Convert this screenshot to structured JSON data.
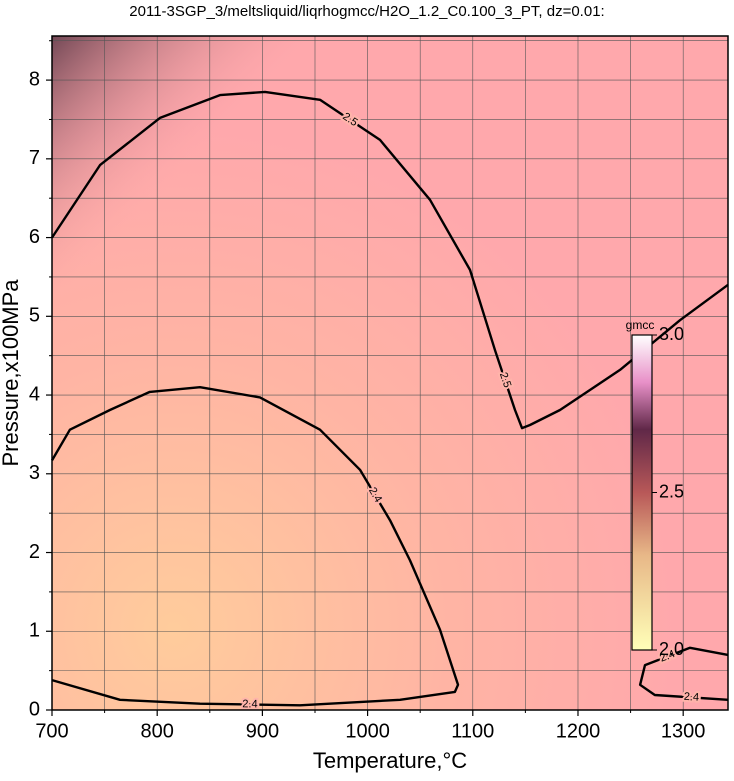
{
  "chart_data": {
    "type": "contour",
    "title": "2011-3SGP_3/meltsliquid/liqrhogmcc/H2O_1.2_C0.100_3_PT, dz=0.01:",
    "x_label": "Temperature,°C",
    "y_label": "Pressure,x100MPa",
    "xlim": [
      700,
      1342.6
    ],
    "ylim": [
      0,
      8.56
    ],
    "xticks": [
      700,
      800,
      900,
      1000,
      1100,
      1200,
      1300
    ],
    "yticks": [
      0,
      1,
      2,
      3,
      4,
      5,
      6,
      7,
      8
    ],
    "xminor": [
      750,
      850,
      950,
      1050,
      1150,
      1250
    ],
    "yminor": [
      0.5,
      1.5,
      2.5,
      3.5,
      4.5,
      5.5,
      6.5,
      7.5,
      8.5
    ],
    "grid": true,
    "contours": [
      {
        "level": 2.5,
        "color": "#000000",
        "x": [
          700,
          745.6,
          802.7,
          859.7,
          902.5,
          954.8,
          1011.8,
          1059.3,
          1097.3,
          1121.1,
          1140.1,
          1146.8,
          1154.4,
          1182.9,
          1239.9,
          1297,
          1342.6
        ],
        "y": [
          6.0,
          6.92,
          7.52,
          7.81,
          7.85,
          7.75,
          7.24,
          6.48,
          5.59,
          4.57,
          3.81,
          3.58,
          3.62,
          3.81,
          4.32,
          4.95,
          5.4
        ]
      },
      {
        "level": 2.4,
        "color": "#000000",
        "x": [
          700,
          717,
          755,
          793,
          840.7,
          897.7,
          954.8,
          992.8,
          1021.3,
          1040.3,
          1068.8,
          1085.9,
          1083,
          1030.8,
          935.7,
          840.7,
          764.6,
          700
        ],
        "y": [
          3.17,
          3.56,
          3.81,
          4.04,
          4.1,
          3.97,
          3.56,
          3.05,
          2.41,
          1.9,
          1.02,
          0.32,
          0.23,
          0.13,
          0.06,
          0.08,
          0.13,
          0.38
        ]
      },
      {
        "level": 2.4,
        "color": "#000000",
        "x": [
          1342.6,
          1306.5,
          1263.7,
          1259,
          1273,
          1342.6
        ],
        "y": [
          0.7,
          0.79,
          0.57,
          0.32,
          0.19,
          0.13
        ]
      }
    ],
    "colorbar": {
      "label": "gmcc",
      "lim": [
        2.0,
        3.0
      ],
      "ticks": [
        {
          "value": 2.0,
          "label": "2.0"
        },
        2.5,
        {
          "value": 3.0,
          "label": "3.0"
        }
      ],
      "stops": [
        {
          "value": 2.0,
          "color": "#ffffb8"
        },
        {
          "value": 2.3,
          "color": "#e8b888"
        },
        {
          "value": 2.5,
          "color": "#b85858"
        },
        {
          "value": 2.7,
          "color": "#602848"
        },
        {
          "value": 2.85,
          "color": "#e890c8"
        },
        {
          "value": 3.0,
          "color": "#ffffff"
        }
      ]
    }
  }
}
